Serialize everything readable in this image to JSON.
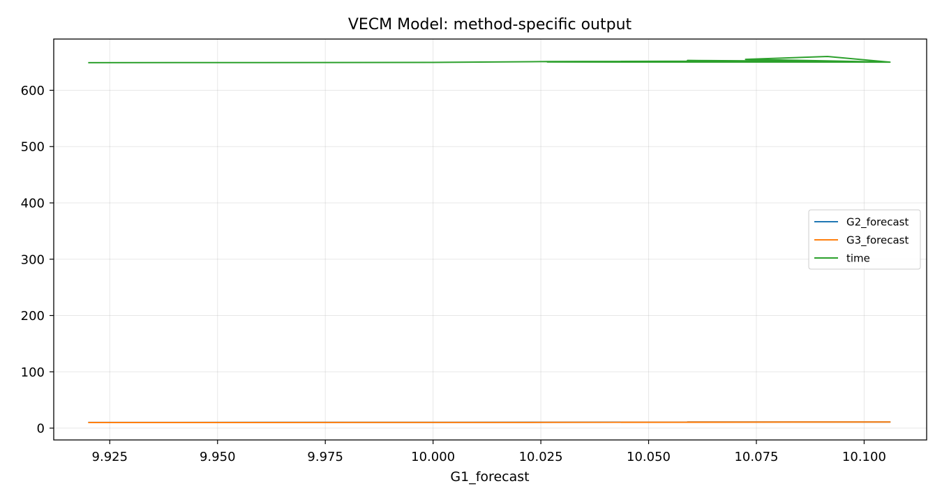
{
  "chart_data": {
    "type": "line",
    "title": "VECM Model: method-specific output",
    "xlabel": "G1_forecast",
    "ylabel": "",
    "xlim": [
      9.912,
      10.1145
    ],
    "ylim": [
      -21,
      691
    ],
    "xticks": [
      9.925,
      9.95,
      9.975,
      10.0,
      10.025,
      10.05,
      10.075,
      10.1
    ],
    "xtick_labels": [
      "9.925",
      "9.950",
      "9.975",
      "10.000",
      "10.025",
      "10.050",
      "10.075",
      "10.100"
    ],
    "yticks": [
      0,
      100,
      200,
      300,
      400,
      500,
      600
    ],
    "ytick_labels": [
      "0",
      "100",
      "200",
      "300",
      "400",
      "500",
      "600"
    ],
    "grid": true,
    "legend_position": "center-right",
    "x": [
      9.92,
      10.0,
      10.0265,
      10.0825,
      10.0265,
      10.106,
      10.059,
      10.079,
      10.059,
      10.106,
      10.0725,
      10.0915,
      10.106
    ],
    "series": [
      {
        "name": "G2_forecast",
        "color": "#1f77b4",
        "values": [
          10.1,
          10.3,
          10.4,
          10.8,
          10.5,
          11.0,
          10.9,
          10.8,
          10.9,
          11.0,
          10.9,
          11.0,
          11.0
        ]
      },
      {
        "name": "G3_forecast",
        "color": "#ff7f0e",
        "values": [
          9.9,
          10.1,
          10.2,
          10.6,
          10.3,
          10.8,
          10.7,
          10.6,
          10.7,
          10.8,
          10.7,
          10.9,
          10.8
        ]
      },
      {
        "name": "time",
        "color": "#2ca02c",
        "values": [
          649,
          649.5,
          651,
          652,
          650.3,
          650,
          653,
          652,
          650.5,
          650,
          655,
          660,
          650
        ]
      }
    ]
  }
}
